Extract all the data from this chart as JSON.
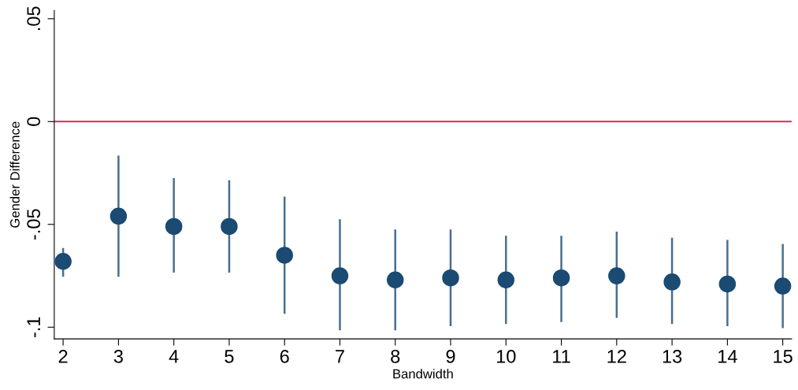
{
  "chart_data": {
    "type": "scatter",
    "xlabel": "Bandwidth",
    "ylabel": "Gender Difference",
    "x": [
      2,
      3,
      4,
      5,
      6,
      7,
      8,
      9,
      10,
      11,
      12,
      13,
      14,
      15
    ],
    "series": [
      {
        "color": "#1b4a72",
        "values": [
          -0.068,
          -0.046,
          -0.051,
          -0.051,
          -0.065,
          -0.075,
          -0.077,
          -0.076,
          -0.077,
          -0.076,
          -0.075,
          -0.078,
          -0.079,
          -0.08
        ],
        "errors": [
          [
            -0.075,
            -0.062
          ],
          [
            -0.075,
            -0.017
          ],
          [
            -0.073,
            -0.028
          ],
          [
            -0.073,
            -0.029
          ],
          [
            -0.093,
            -0.037
          ],
          [
            -0.101,
            -0.048
          ],
          [
            -0.101,
            -0.053
          ],
          [
            -0.099,
            -0.053
          ],
          [
            -0.098,
            -0.056
          ],
          [
            -0.097,
            -0.056
          ],
          [
            -0.095,
            -0.054
          ],
          [
            -0.098,
            -0.057
          ],
          [
            -0.099,
            -0.058
          ],
          [
            -0.1,
            -0.06
          ]
        ]
      }
    ],
    "xlim": [
      1.84,
      15.16
    ],
    "xticks": [
      2,
      3,
      4,
      5,
      6,
      7,
      8,
      9,
      10,
      11,
      12,
      13,
      14,
      15
    ],
    "ylim": [
      -0.1057,
      0.054
    ],
    "yticks": [
      {
        "value": -0.1,
        "label": "-.1"
      },
      {
        "value": -0.05,
        "label": "-.05"
      },
      0,
      {
        "value": 0.05,
        "label": ".05"
      }
    ],
    "ref_lines": [
      {
        "axis": "y",
        "value": 0,
        "color": "#d62d56"
      }
    ],
    "grid": false,
    "legend": false,
    "marker": "circle"
  }
}
